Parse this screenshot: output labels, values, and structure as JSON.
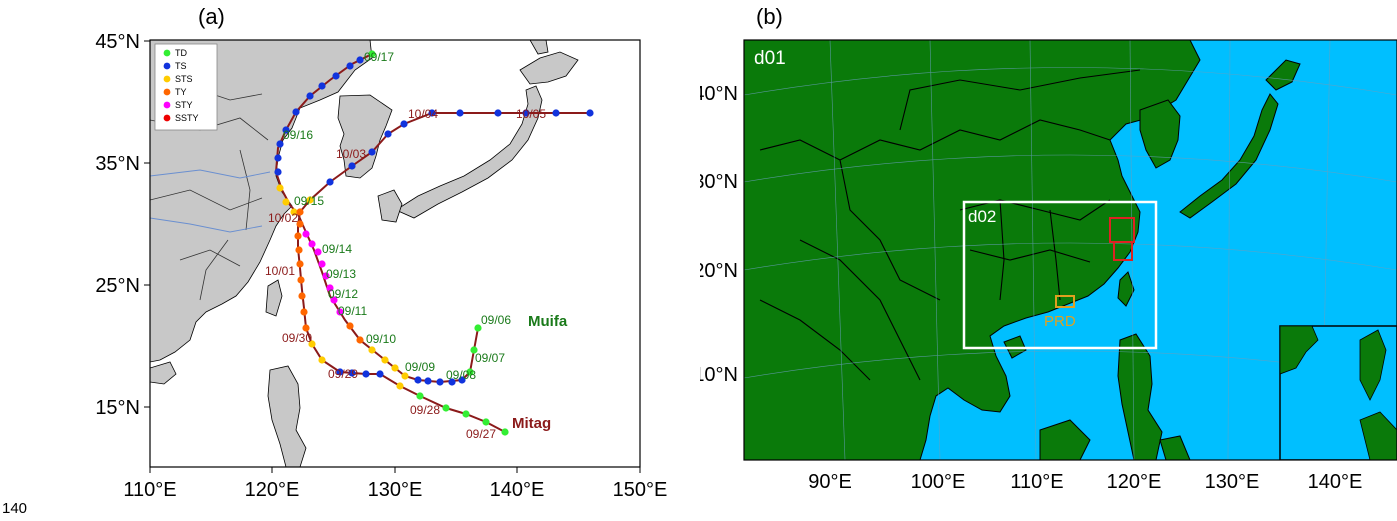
{
  "page_number": "140",
  "panel_a": {
    "label": "(a)",
    "x_ticks": [
      "110°E",
      "120°E",
      "130°E",
      "140°E",
      "150°E"
    ],
    "y_ticks": [
      "15°N",
      "25°N",
      "35°N",
      "45°N"
    ],
    "legend": [
      {
        "label": "TD",
        "color": "#33ee33"
      },
      {
        "label": "TS",
        "color": "#1133dd"
      },
      {
        "label": "STS",
        "color": "#ffcc00"
      },
      {
        "label": "TY",
        "color": "#ff6600"
      },
      {
        "label": "STY",
        "color": "#ff00ff"
      },
      {
        "label": "SSTY",
        "color": "#ee0000"
      }
    ],
    "storms": [
      {
        "name": "Muifa",
        "color": "#1a7a1a",
        "dates": [
          "09/06",
          "09/07",
          "09/08",
          "09/09",
          "09/10",
          "09/11",
          "09/12",
          "09/13",
          "09/14",
          "09/15",
          "09/16",
          "09/17"
        ]
      },
      {
        "name": "Mitag",
        "color": "#8b0000",
        "dates": [
          "09/27",
          "09/28",
          "09/29",
          "09/30",
          "10/01",
          "10/02",
          "10/03",
          "10/04",
          "10/05"
        ]
      }
    ],
    "colors": {
      "land": "#c8c8c8",
      "ocean": "#ffffff",
      "track_line": "#8b1a1a"
    }
  },
  "panel_b": {
    "label": "(b)",
    "x_ticks": [
      "90°E",
      "100°E",
      "110°E",
      "120°E",
      "130°E",
      "140°E"
    ],
    "y_ticks": [
      "10°N",
      "20°N",
      "30°N",
      "40°N"
    ],
    "domains": {
      "d01": "d01",
      "d02": "d02"
    },
    "region_label": "PRD",
    "colors": {
      "land": "#0a7a0a",
      "ocean": "#00bfff",
      "d02_box": "#ffffff",
      "prd_box": "#e0a020",
      "inner_box": "#dd2222"
    }
  }
}
